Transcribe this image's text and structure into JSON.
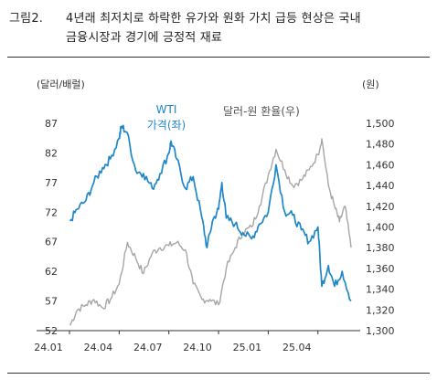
{
  "figure": {
    "label": "그림2.",
    "title_line1": "4년래 최저치로 하락한 유가와 원화 가치 급등 현상은 국내",
    "title_line2": "금융시장과 경기에 긍정적 재료"
  },
  "chart_data": {
    "type": "line",
    "left_axis": {
      "unit_label": "(달러/배럴)",
      "ticks": [
        "87",
        "82",
        "77",
        "72",
        "67",
        "62",
        "57",
        "52"
      ],
      "tick_values": [
        87,
        82,
        77,
        72,
        67,
        62,
        57,
        52
      ],
      "ylim": [
        52,
        89
      ]
    },
    "right_axis": {
      "unit_label": "(원)",
      "ticks": [
        "1,500",
        "1,480",
        "1,460",
        "1,440",
        "1,420",
        "1,400",
        "1,380",
        "1,360",
        "1,340",
        "1,320",
        "1,300"
      ],
      "tick_values": [
        1500,
        1480,
        1460,
        1440,
        1420,
        1400,
        1380,
        1360,
        1340,
        1320,
        1300
      ],
      "ylim": [
        1300,
        1500
      ]
    },
    "x_axis": {
      "ticks": [
        "24.01",
        "24.04",
        "24.07",
        "24.10",
        "25.01",
        "25.04"
      ],
      "range": [
        "2024-01",
        "2025-06"
      ]
    },
    "series": [
      {
        "name_line1": "WTI",
        "name_line2": "가격(좌)",
        "axis": "left",
        "color": "#1f87c9",
        "x": [
          "2024-01-02",
          "2024-01-15",
          "2024-02-01",
          "2024-02-15",
          "2024-03-01",
          "2024-03-15",
          "2024-04-01",
          "2024-04-05",
          "2024-04-15",
          "2024-05-01",
          "2024-05-15",
          "2024-06-01",
          "2024-06-15",
          "2024-07-01",
          "2024-07-05",
          "2024-07-15",
          "2024-08-01",
          "2024-08-15",
          "2024-09-01",
          "2024-09-10",
          "2024-09-20",
          "2024-10-01",
          "2024-10-07",
          "2024-10-15",
          "2024-11-01",
          "2024-11-15",
          "2024-12-01",
          "2024-12-15",
          "2025-01-01",
          "2025-01-15",
          "2025-02-01",
          "2025-02-15",
          "2025-03-01",
          "2025-03-15",
          "2025-04-01",
          "2025-04-08",
          "2025-04-20",
          "2025-05-01",
          "2025-05-15",
          "2025-06-01"
        ],
        "values": [
          70.5,
          72.5,
          74.0,
          77.0,
          79.5,
          81.0,
          84.5,
          86.5,
          85.5,
          79.0,
          78.5,
          76.0,
          78.5,
          82.0,
          84.0,
          81.0,
          76.0,
          78.0,
          71.0,
          66.0,
          70.5,
          72.5,
          77.0,
          71.0,
          70.0,
          68.5,
          67.5,
          70.0,
          72.0,
          80.0,
          72.0,
          71.5,
          69.0,
          67.0,
          69.5,
          59.5,
          63.0,
          59.5,
          62.0,
          57.0
        ]
      },
      {
        "name_line1": "달러-원 환율(우)",
        "axis": "right",
        "color": "#a6a6a6",
        "x": [
          "2024-01-02",
          "2024-01-15",
          "2024-02-01",
          "2024-02-15",
          "2024-03-01",
          "2024-03-15",
          "2024-04-01",
          "2024-04-16",
          "2024-05-01",
          "2024-05-15",
          "2024-06-01",
          "2024-06-15",
          "2024-07-01",
          "2024-07-15",
          "2024-08-01",
          "2024-08-15",
          "2024-09-01",
          "2024-09-15",
          "2024-10-01",
          "2024-10-15",
          "2024-11-01",
          "2024-11-15",
          "2024-12-01",
          "2024-12-15",
          "2025-01-01",
          "2025-01-15",
          "2025-02-01",
          "2025-02-15",
          "2025-03-01",
          "2025-03-15",
          "2025-04-01",
          "2025-04-08",
          "2025-04-20",
          "2025-05-01",
          "2025-05-10",
          "2025-05-20",
          "2025-06-01"
        ],
        "values": [
          1305,
          1320,
          1325,
          1330,
          1322,
          1330,
          1345,
          1385,
          1370,
          1355,
          1375,
          1380,
          1382,
          1385,
          1378,
          1345,
          1330,
          1330,
          1325,
          1360,
          1380,
          1395,
          1400,
          1420,
          1450,
          1475,
          1455,
          1440,
          1445,
          1455,
          1470,
          1485,
          1440,
          1420,
          1405,
          1420,
          1380
        ]
      }
    ]
  }
}
